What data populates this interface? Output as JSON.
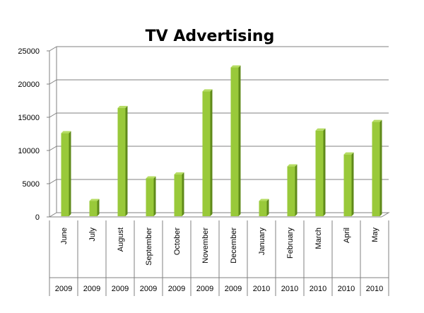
{
  "chart_data": {
    "type": "bar",
    "title": "TV Advertising",
    "xlabel": "",
    "ylabel": "",
    "ylim": [
      0,
      25000
    ],
    "yticks": [
      0,
      5000,
      10000,
      15000,
      20000,
      25000
    ],
    "grid": true,
    "legend": "none",
    "categories": [
      "June",
      "July",
      "August",
      "September",
      "October",
      "November",
      "December",
      "January",
      "February",
      "March",
      "April",
      "May"
    ],
    "years": [
      "2009",
      "2009",
      "2009",
      "2009",
      "2009",
      "2009",
      "2009",
      "2010",
      "2010",
      "2010",
      "2010",
      "2010"
    ],
    "values": [
      12600,
      2400,
      16400,
      5800,
      6400,
      18900,
      22500,
      2400,
      7600,
      13000,
      9400,
      14300
    ],
    "colors": {
      "bar_front": "#99c93a",
      "bar_side": "#5f8a1a",
      "bar_top": "#b5dc62",
      "grid": "#808080",
      "text": "#000000"
    }
  }
}
